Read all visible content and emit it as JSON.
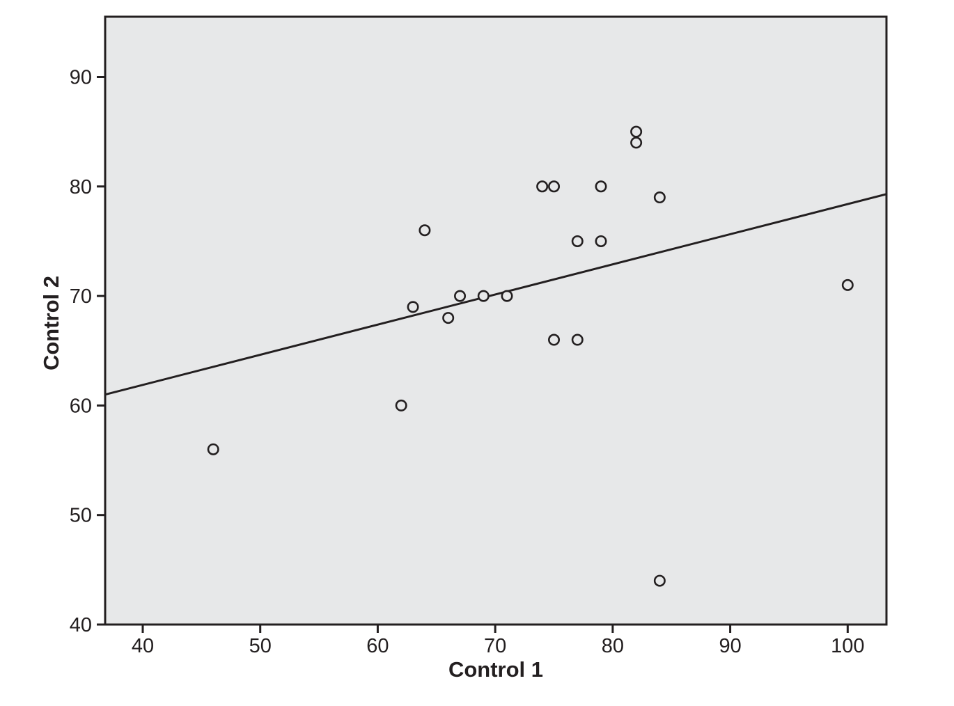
{
  "chart_data": {
    "type": "scatter",
    "title": "",
    "xlabel": "Control 1",
    "ylabel": "Control 2",
    "x_ticks": [
      40,
      50,
      60,
      70,
      80,
      90,
      100
    ],
    "y_ticks": [
      40,
      50,
      60,
      70,
      80,
      90
    ],
    "xlim": [
      36.8,
      103.3
    ],
    "ylim": [
      40,
      95.5
    ],
    "grid": false,
    "legend": false,
    "points": [
      [
        46,
        56
      ],
      [
        62,
        60
      ],
      [
        63,
        69
      ],
      [
        64,
        76
      ],
      [
        66,
        68
      ],
      [
        67,
        70
      ],
      [
        69,
        70
      ],
      [
        71,
        70
      ],
      [
        74,
        80
      ],
      [
        75,
        80
      ],
      [
        75,
        66
      ],
      [
        77,
        66
      ],
      [
        77,
        75
      ],
      [
        79,
        75
      ],
      [
        79,
        80
      ],
      [
        82,
        84
      ],
      [
        82,
        85
      ],
      [
        84,
        79
      ],
      [
        84,
        44
      ],
      [
        100,
        71
      ]
    ],
    "fit_line": {
      "x1": 36.8,
      "y1": 61.0,
      "x2": 103.3,
      "y2": 79.3
    },
    "style": {
      "plot_bg": "#e7e8e9",
      "ink": "#231f20",
      "marker_radius": 7.2,
      "marker_stroke_width": 2.6,
      "fit_line_width": 3,
      "frame_width": 3,
      "tick_length": 12,
      "tick_width": 3,
      "tick_font_size": 29
    }
  }
}
